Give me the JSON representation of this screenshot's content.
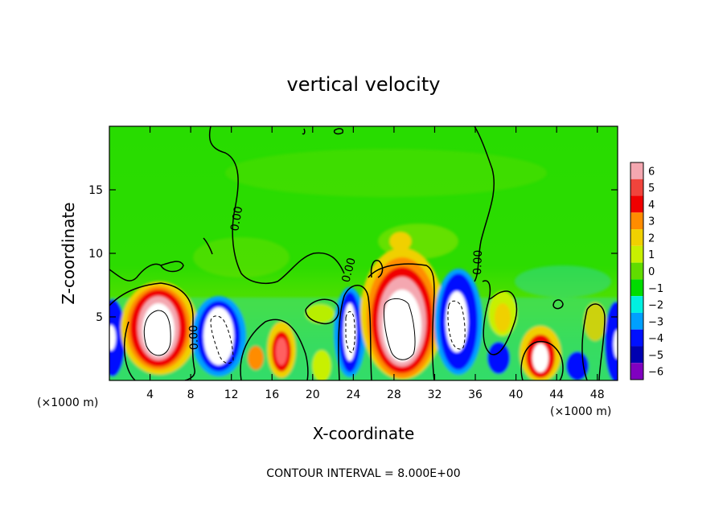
{
  "chart_data": {
    "type": "heatmap",
    "title": "vertical velocity",
    "xlabel": "X-coordinate",
    "ylabel": "Z-coordinate",
    "x_unit_left": "(×1000 m)",
    "x_unit_right": "(×1000 m)",
    "footer": "CONTOUR INTERVAL = 8.000E+00",
    "xlim": [
      0,
      50
    ],
    "ylim": [
      0,
      20
    ],
    "x_ticks": [
      4,
      8,
      12,
      16,
      20,
      24,
      28,
      32,
      36,
      40,
      44,
      48
    ],
    "x_tick_labels": [
      "4",
      "8",
      "12",
      "16",
      "20",
      "24",
      "28",
      "32",
      "36",
      "40",
      "44",
      "48"
    ],
    "y_ticks": [
      5,
      10,
      15
    ],
    "y_tick_labels": [
      "5",
      "10",
      "15"
    ],
    "contour_label": "0.00",
    "colorbar": {
      "levels": [
        6,
        5,
        4,
        3,
        2,
        1,
        0,
        -1,
        -2,
        -3,
        -4,
        -5,
        -6
      ],
      "labels": [
        "6",
        "5",
        "4",
        "3",
        "2",
        "1",
        "0",
        "−1",
        "−2",
        "−3",
        "−4",
        "−5",
        "−6"
      ],
      "colors": [
        "#f4a7b0",
        "#f0443c",
        "#f00000",
        "#ff8c00",
        "#f0d000",
        "#c8f000",
        "#60dc00",
        "#00dc00",
        "#00f0e0",
        "#00a0ff",
        "#0010ff",
        "#0000b0",
        "#8000c0"
      ]
    },
    "features": [
      {
        "kind": "updraft",
        "x": 5.5,
        "z": 3.5,
        "max": "above 6"
      },
      {
        "kind": "downdraft",
        "x": 11,
        "z": 3.5,
        "min": "below -6"
      },
      {
        "kind": "updraft",
        "x": 17,
        "z": 2.2,
        "max": 5
      },
      {
        "kind": "downdraft",
        "x": 23.5,
        "z": 3.5,
        "min": "below -6"
      },
      {
        "kind": "updraft",
        "x": 29,
        "z": 4.5,
        "max": "above 6"
      },
      {
        "kind": "downdraft",
        "x": 34.5,
        "z": 4.5,
        "min": "below -6"
      },
      {
        "kind": "updraft",
        "x": 42,
        "z": 2,
        "max": 5
      },
      {
        "kind": "downdraft",
        "x": 50,
        "z": 3,
        "min": "below -6"
      }
    ]
  }
}
